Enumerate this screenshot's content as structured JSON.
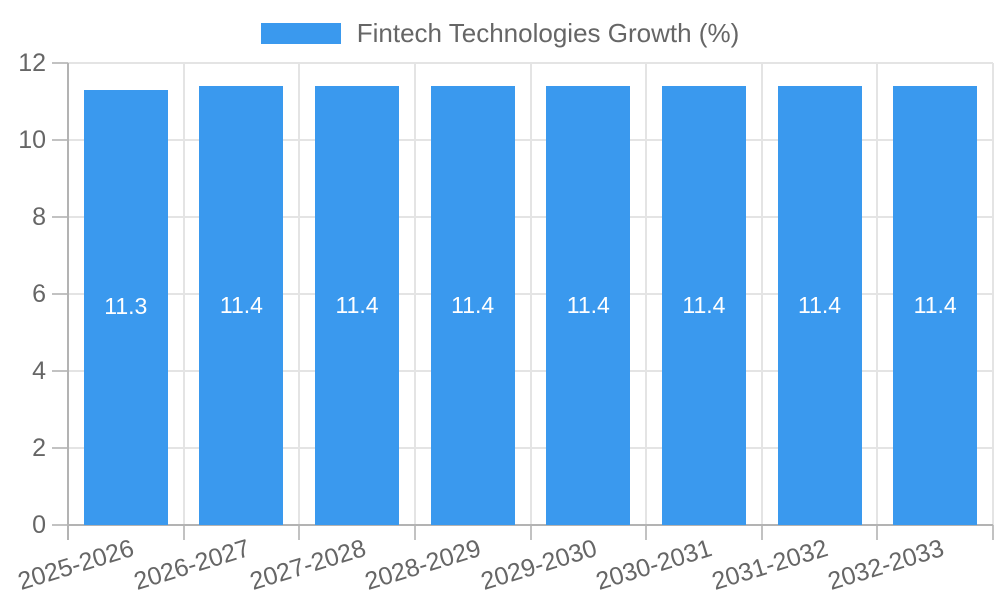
{
  "legend": {
    "label": "Fintech Technologies Growth (%)"
  },
  "chart_data": {
    "type": "bar",
    "title": "",
    "series_name": "Fintech Technologies Growth (%)",
    "categories": [
      "2025-2026",
      "2026-2027",
      "2027-2028",
      "2028-2029",
      "2029-2030",
      "2030-2031",
      "2031-2032",
      "2032-2033"
    ],
    "values": [
      11.3,
      11.4,
      11.4,
      11.4,
      11.4,
      11.4,
      11.4,
      11.4
    ],
    "value_labels": [
      "11.3",
      "11.4",
      "11.4",
      "11.4",
      "11.4",
      "11.4",
      "11.4",
      "11.4"
    ],
    "xlabel": "",
    "ylabel": "",
    "ylim": [
      0,
      12
    ],
    "yticks": [
      0,
      2,
      4,
      6,
      8,
      10,
      12
    ],
    "grid": true,
    "legend_position": "top",
    "bar_color": "#3a99ee",
    "value_label_color": "#ffffff",
    "tick_label_color": "#666666",
    "grid_color": "#e4e4e4",
    "axis_color": "#b3b3b3",
    "tick_color": "#c2c2c2",
    "background": "#ffffff"
  }
}
